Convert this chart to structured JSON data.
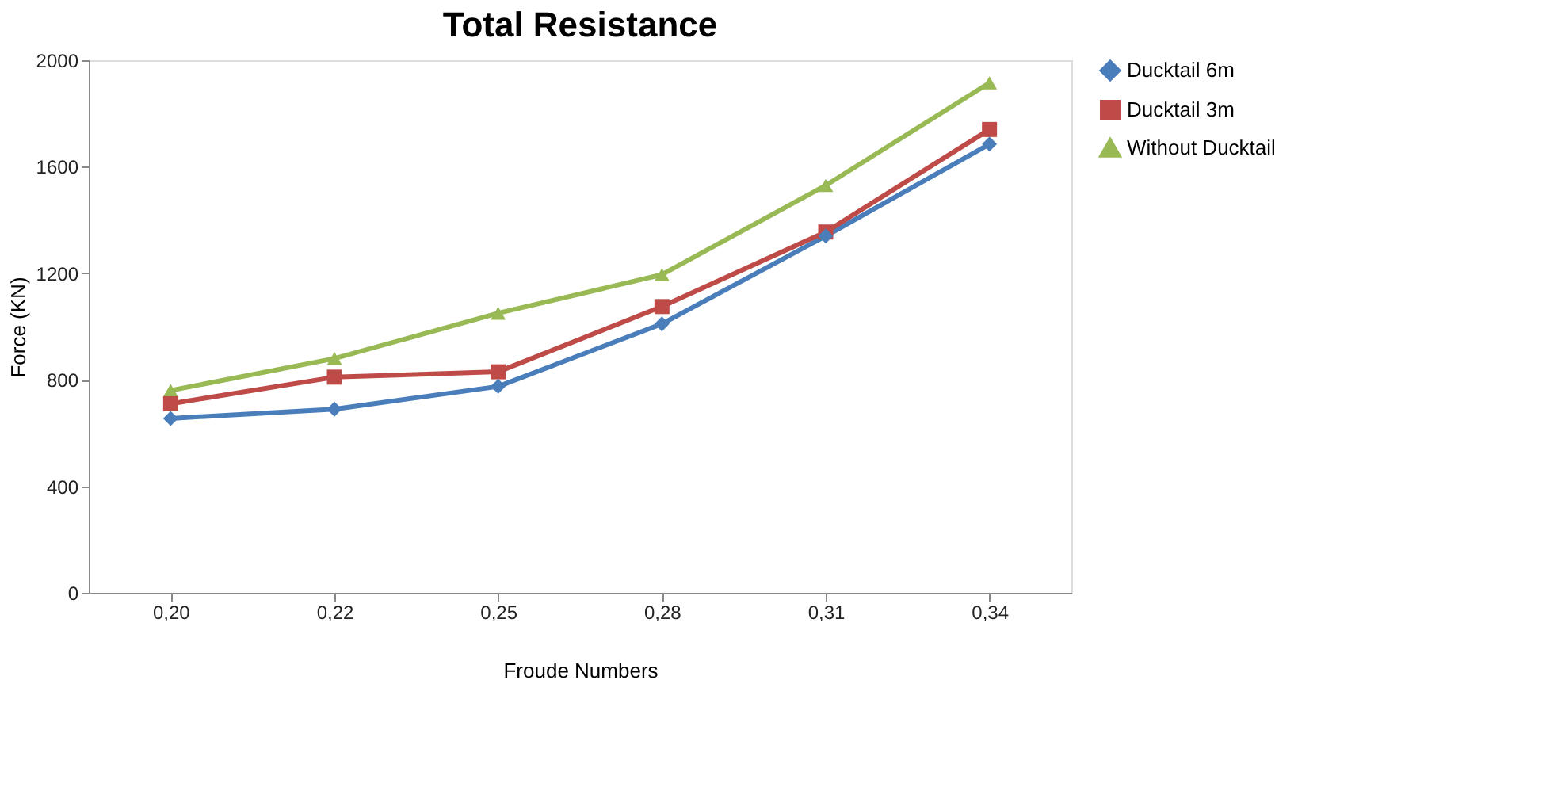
{
  "chart_data": {
    "type": "line",
    "title": "Total Resistance",
    "xlabel": "Froude Numbers",
    "ylabel": "Force (KN)",
    "categories": [
      "0,20",
      "0,22",
      "0,25",
      "0,28",
      "0,31",
      "0,34"
    ],
    "ylim": [
      0,
      2000
    ],
    "yticks": [
      0,
      400,
      800,
      1200,
      1600,
      2000
    ],
    "grid": false,
    "legend": "right",
    "series": [
      {
        "name": "Ducktail 6m",
        "color": "#4a7ebb",
        "marker": "diamond",
        "values": [
          655,
          690,
          775,
          1010,
          1340,
          1685
        ]
      },
      {
        "name": "Ducktail 3m",
        "color": "#be4b48",
        "marker": "square",
        "values": [
          710,
          810,
          830,
          1075,
          1355,
          1740
        ]
      },
      {
        "name": "Without Ducktail",
        "color": "#98b954",
        "marker": "triangle",
        "values": [
          760,
          880,
          1050,
          1195,
          1530,
          1915
        ]
      }
    ]
  }
}
